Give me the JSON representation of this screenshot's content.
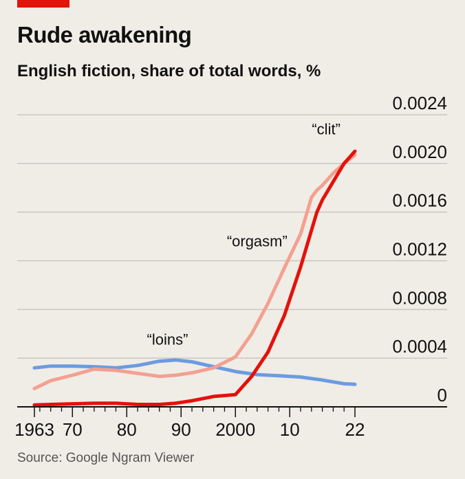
{
  "header": {
    "title": "Rude awakening",
    "subtitle": "English fiction, share of total words, %"
  },
  "footer": {
    "source": "Source: Google Ngram Viewer"
  },
  "colors": {
    "accent": "#e3120b",
    "clit": "#e3120b",
    "orgasm": "#f4a091",
    "loins": "#6c9be0",
    "grid": "#c9c6c0",
    "axis": "#111111"
  },
  "chart_data": {
    "type": "line",
    "title": "Rude awakening",
    "subtitle": "English fiction, share of total words, %",
    "xlabel": "",
    "ylabel": "",
    "xlim": [
      1963,
      2022
    ],
    "ylim": [
      0,
      0.0024
    ],
    "yticks": [
      {
        "value": 0,
        "label": "0"
      },
      {
        "value": 0.0004,
        "label": "0.0004"
      },
      {
        "value": 0.0008,
        "label": "0.0008"
      },
      {
        "value": 0.0012,
        "label": "0.0012"
      },
      {
        "value": 0.0016,
        "label": "0.0016"
      },
      {
        "value": 0.002,
        "label": "0.0020"
      },
      {
        "value": 0.0024,
        "label": "0.0024"
      }
    ],
    "xticks": [
      {
        "value": 1963,
        "label": "1963"
      },
      {
        "value": 1970,
        "label": "70"
      },
      {
        "value": 1980,
        "label": "80"
      },
      {
        "value": 1990,
        "label": "90"
      },
      {
        "value": 2000,
        "label": "2000"
      },
      {
        "value": 2010,
        "label": "10"
      },
      {
        "value": 2022,
        "label": "22"
      }
    ],
    "grid": true,
    "y_axis_position": "right",
    "series": [
      {
        "name": "“loins”",
        "color": "#6c9be0",
        "x": [
          1963,
          1966,
          1970,
          1974,
          1978,
          1982,
          1986,
          1989,
          1992,
          1996,
          2000,
          2004,
          2008,
          2012,
          2016,
          2020,
          2022
        ],
        "y": [
          0.00032,
          0.000335,
          0.000335,
          0.00033,
          0.00032,
          0.00034,
          0.000375,
          0.000385,
          0.00037,
          0.00033,
          0.00029,
          0.000265,
          0.000255,
          0.000245,
          0.00022,
          0.00019,
          0.000185
        ]
      },
      {
        "name": "“orgasm”",
        "color": "#f4a091",
        "x": [
          1963,
          1966,
          1970,
          1974,
          1978,
          1982,
          1986,
          1989,
          1992,
          1996,
          2000,
          2003,
          2006,
          2009,
          2012,
          2014,
          2015,
          2016,
          2018,
          2020,
          2022
        ],
        "y": [
          0.00015,
          0.000215,
          0.00026,
          0.00031,
          0.0003,
          0.000275,
          0.00025,
          0.00026,
          0.00028,
          0.00032,
          0.00041,
          0.0006,
          0.00085,
          0.00114,
          0.00142,
          0.00172,
          0.00178,
          0.00182,
          0.00192,
          0.002,
          0.00207
        ]
      },
      {
        "name": "“clit”",
        "color": "#e3120b",
        "x": [
          1963,
          1966,
          1970,
          1974,
          1978,
          1982,
          1986,
          1989,
          1992,
          1996,
          2000,
          2003,
          2006,
          2009,
          2012,
          2014,
          2015,
          2016,
          2018,
          2020,
          2022
        ],
        "y": [
          1.5e-05,
          2e-05,
          2.5e-05,
          3e-05,
          3e-05,
          2e-05,
          2e-05,
          3e-05,
          5e-05,
          8.5e-05,
          0.0001,
          0.00025,
          0.00045,
          0.00075,
          0.00115,
          0.00145,
          0.0016,
          0.0017,
          0.00185,
          0.002,
          0.0021
        ]
      }
    ],
    "annotations": [
      {
        "text": "“clit”",
        "x": 2016.7,
        "y": 0.00224
      },
      {
        "text": "“orgasm”",
        "x": 2004,
        "y": 0.00132
      },
      {
        "text": "“loins”",
        "x": 1987.5,
        "y": 0.00051
      }
    ]
  }
}
